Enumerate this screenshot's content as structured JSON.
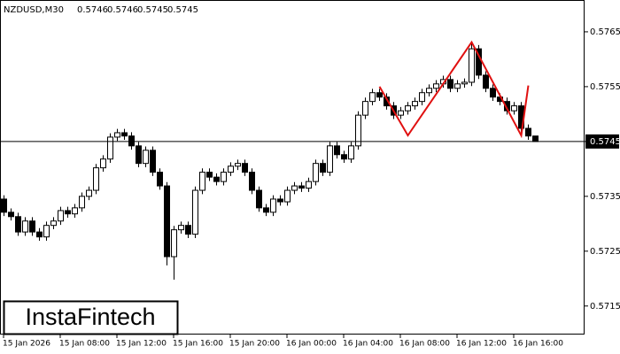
{
  "chart_data": {
    "type": "candlestick",
    "title": "NZDUSD,M30",
    "last_ohlc": [
      0.5746,
      0.5746,
      0.5745,
      0.5745
    ],
    "current_price": 0.5745,
    "brand": "InstaFintech",
    "up_color": "#ffffff",
    "down_color": "#000000",
    "categories": [
      "15 Jan 2026",
      null,
      null,
      null,
      null,
      null,
      null,
      null,
      "15 Jan 08:00",
      null,
      null,
      null,
      null,
      null,
      null,
      null,
      "15 Jan 12:00",
      null,
      null,
      null,
      null,
      null,
      null,
      null,
      "15 Jan 16:00",
      null,
      null,
      null,
      null,
      null,
      null,
      null,
      "15 Jan 20:00",
      null,
      null,
      null,
      null,
      null,
      null,
      null,
      "16 Jan 00:00",
      null,
      null,
      null,
      null,
      null,
      null,
      null,
      "16 Jan 04:00",
      null,
      null,
      null,
      null,
      null,
      null,
      null,
      "16 Jan 08:00",
      null,
      null,
      null,
      null,
      null,
      null,
      null,
      "16 Jan 12:00",
      null,
      null,
      null,
      null,
      null,
      null,
      null,
      "16 Jan 16:00",
      null,
      null,
      null
    ],
    "open": [
      0.57345,
      0.57321,
      0.57313,
      0.57285,
      0.57305,
      0.57285,
      0.57276,
      0.57297,
      0.57305,
      0.57324,
      0.57318,
      0.57329,
      0.5735,
      0.57361,
      0.57402,
      0.57418,
      0.57458,
      0.57466,
      0.5746,
      0.57442,
      0.5741,
      0.57434,
      0.57394,
      0.57369,
      0.5724,
      0.57289,
      0.57297,
      0.57281,
      0.57361,
      0.57394,
      0.57385,
      0.57377,
      0.57394,
      0.57405,
      0.5741,
      0.57394,
      0.57361,
      0.57329,
      0.57321,
      0.57345,
      0.5734,
      0.57361,
      0.57369,
      0.57365,
      0.57377,
      0.5741,
      0.57394,
      0.57442,
      0.57426,
      0.57418,
      0.57442,
      0.57498,
      0.57523,
      0.57539,
      0.57531,
      0.57515,
      0.57498,
      0.57506,
      0.57515,
      0.57523,
      0.57539,
      0.57547,
      0.57555,
      0.57563,
      0.57547,
      0.57555,
      0.57558,
      0.57619,
      0.57571,
      0.57547,
      0.57531,
      0.57523,
      0.57506,
      0.57515,
      0.57474,
      0.5746
    ],
    "high": [
      0.57352,
      0.57328,
      0.5732,
      0.57312,
      0.57312,
      0.57292,
      0.57304,
      0.57312,
      0.57331,
      0.57331,
      0.57336,
      0.57357,
      0.57368,
      0.57409,
      0.57425,
      0.57465,
      0.57473,
      0.57473,
      0.57467,
      0.57449,
      0.57441,
      0.57441,
      0.57401,
      0.57376,
      0.57296,
      0.57304,
      0.57304,
      0.57368,
      0.57401,
      0.57401,
      0.57392,
      0.57401,
      0.57412,
      0.57417,
      0.57417,
      0.57401,
      0.57368,
      0.57336,
      0.57352,
      0.57352,
      0.57368,
      0.57376,
      0.57376,
      0.57384,
      0.57417,
      0.57417,
      0.57449,
      0.57449,
      0.57433,
      0.57449,
      0.57505,
      0.5753,
      0.57546,
      0.57546,
      0.57538,
      0.57522,
      0.57513,
      0.57522,
      0.5753,
      0.57546,
      0.57554,
      0.57562,
      0.5757,
      0.5757,
      0.57562,
      0.57565,
      0.57631,
      0.57626,
      0.57578,
      0.57554,
      0.57538,
      0.5753,
      0.57522,
      0.57522,
      0.57481,
      0.5746
    ],
    "low": [
      0.57314,
      0.57306,
      0.57278,
      0.57278,
      0.57278,
      0.57269,
      0.57269,
      0.5729,
      0.57298,
      0.57311,
      0.57311,
      0.57322,
      0.57343,
      0.57354,
      0.57395,
      0.57411,
      0.57451,
      0.57453,
      0.57435,
      0.57403,
      0.57403,
      0.57387,
      0.57362,
      0.57224,
      0.57198,
      0.57282,
      0.57274,
      0.57274,
      0.57354,
      0.57378,
      0.5737,
      0.5737,
      0.57387,
      0.57398,
      0.57387,
      0.57354,
      0.57322,
      0.57314,
      0.57314,
      0.57333,
      0.57333,
      0.57354,
      0.57358,
      0.57358,
      0.5737,
      0.57387,
      0.57387,
      0.57419,
      0.57411,
      0.57411,
      0.57435,
      0.57491,
      0.57516,
      0.57524,
      0.57508,
      0.57491,
      0.57491,
      0.57499,
      0.57508,
      0.57516,
      0.57532,
      0.5754,
      0.57548,
      0.5754,
      0.5754,
      0.57548,
      0.57551,
      0.57564,
      0.5754,
      0.57524,
      0.57516,
      0.57499,
      0.57499,
      0.57467,
      0.57453,
      0.5745
    ],
    "close": [
      0.57321,
      0.57313,
      0.57285,
      0.57305,
      0.57285,
      0.57276,
      0.57297,
      0.57305,
      0.57324,
      0.57318,
      0.57329,
      0.5735,
      0.57361,
      0.57402,
      0.57418,
      0.57458,
      0.57466,
      0.5746,
      0.57442,
      0.5741,
      0.57434,
      0.57394,
      0.57369,
      0.5724,
      0.57289,
      0.57297,
      0.57281,
      0.57361,
      0.57394,
      0.57385,
      0.57377,
      0.57394,
      0.57405,
      0.5741,
      0.57394,
      0.57361,
      0.57329,
      0.57321,
      0.57345,
      0.5734,
      0.57361,
      0.57369,
      0.57365,
      0.57377,
      0.5741,
      0.57394,
      0.57442,
      0.57426,
      0.57418,
      0.57442,
      0.57498,
      0.57523,
      0.57539,
      0.57531,
      0.57515,
      0.57498,
      0.57506,
      0.57515,
      0.57523,
      0.57539,
      0.57547,
      0.57555,
      0.57563,
      0.57547,
      0.57555,
      0.57558,
      0.57619,
      0.57571,
      0.57547,
      0.57531,
      0.57523,
      0.57506,
      0.57515,
      0.57474,
      0.5746,
      0.5745
    ],
    "pattern": {
      "color": "#e01010",
      "x": [
        53,
        57,
        66,
        73,
        74
      ],
      "values": [
        0.5755,
        0.57461,
        0.57631,
        0.57461,
        0.57552
      ]
    },
    "ylim": [
      0.57098,
      0.57708
    ],
    "yticks": [
      0.5715,
      0.5725,
      0.5735,
      0.5745,
      0.5755,
      0.5765
    ]
  }
}
